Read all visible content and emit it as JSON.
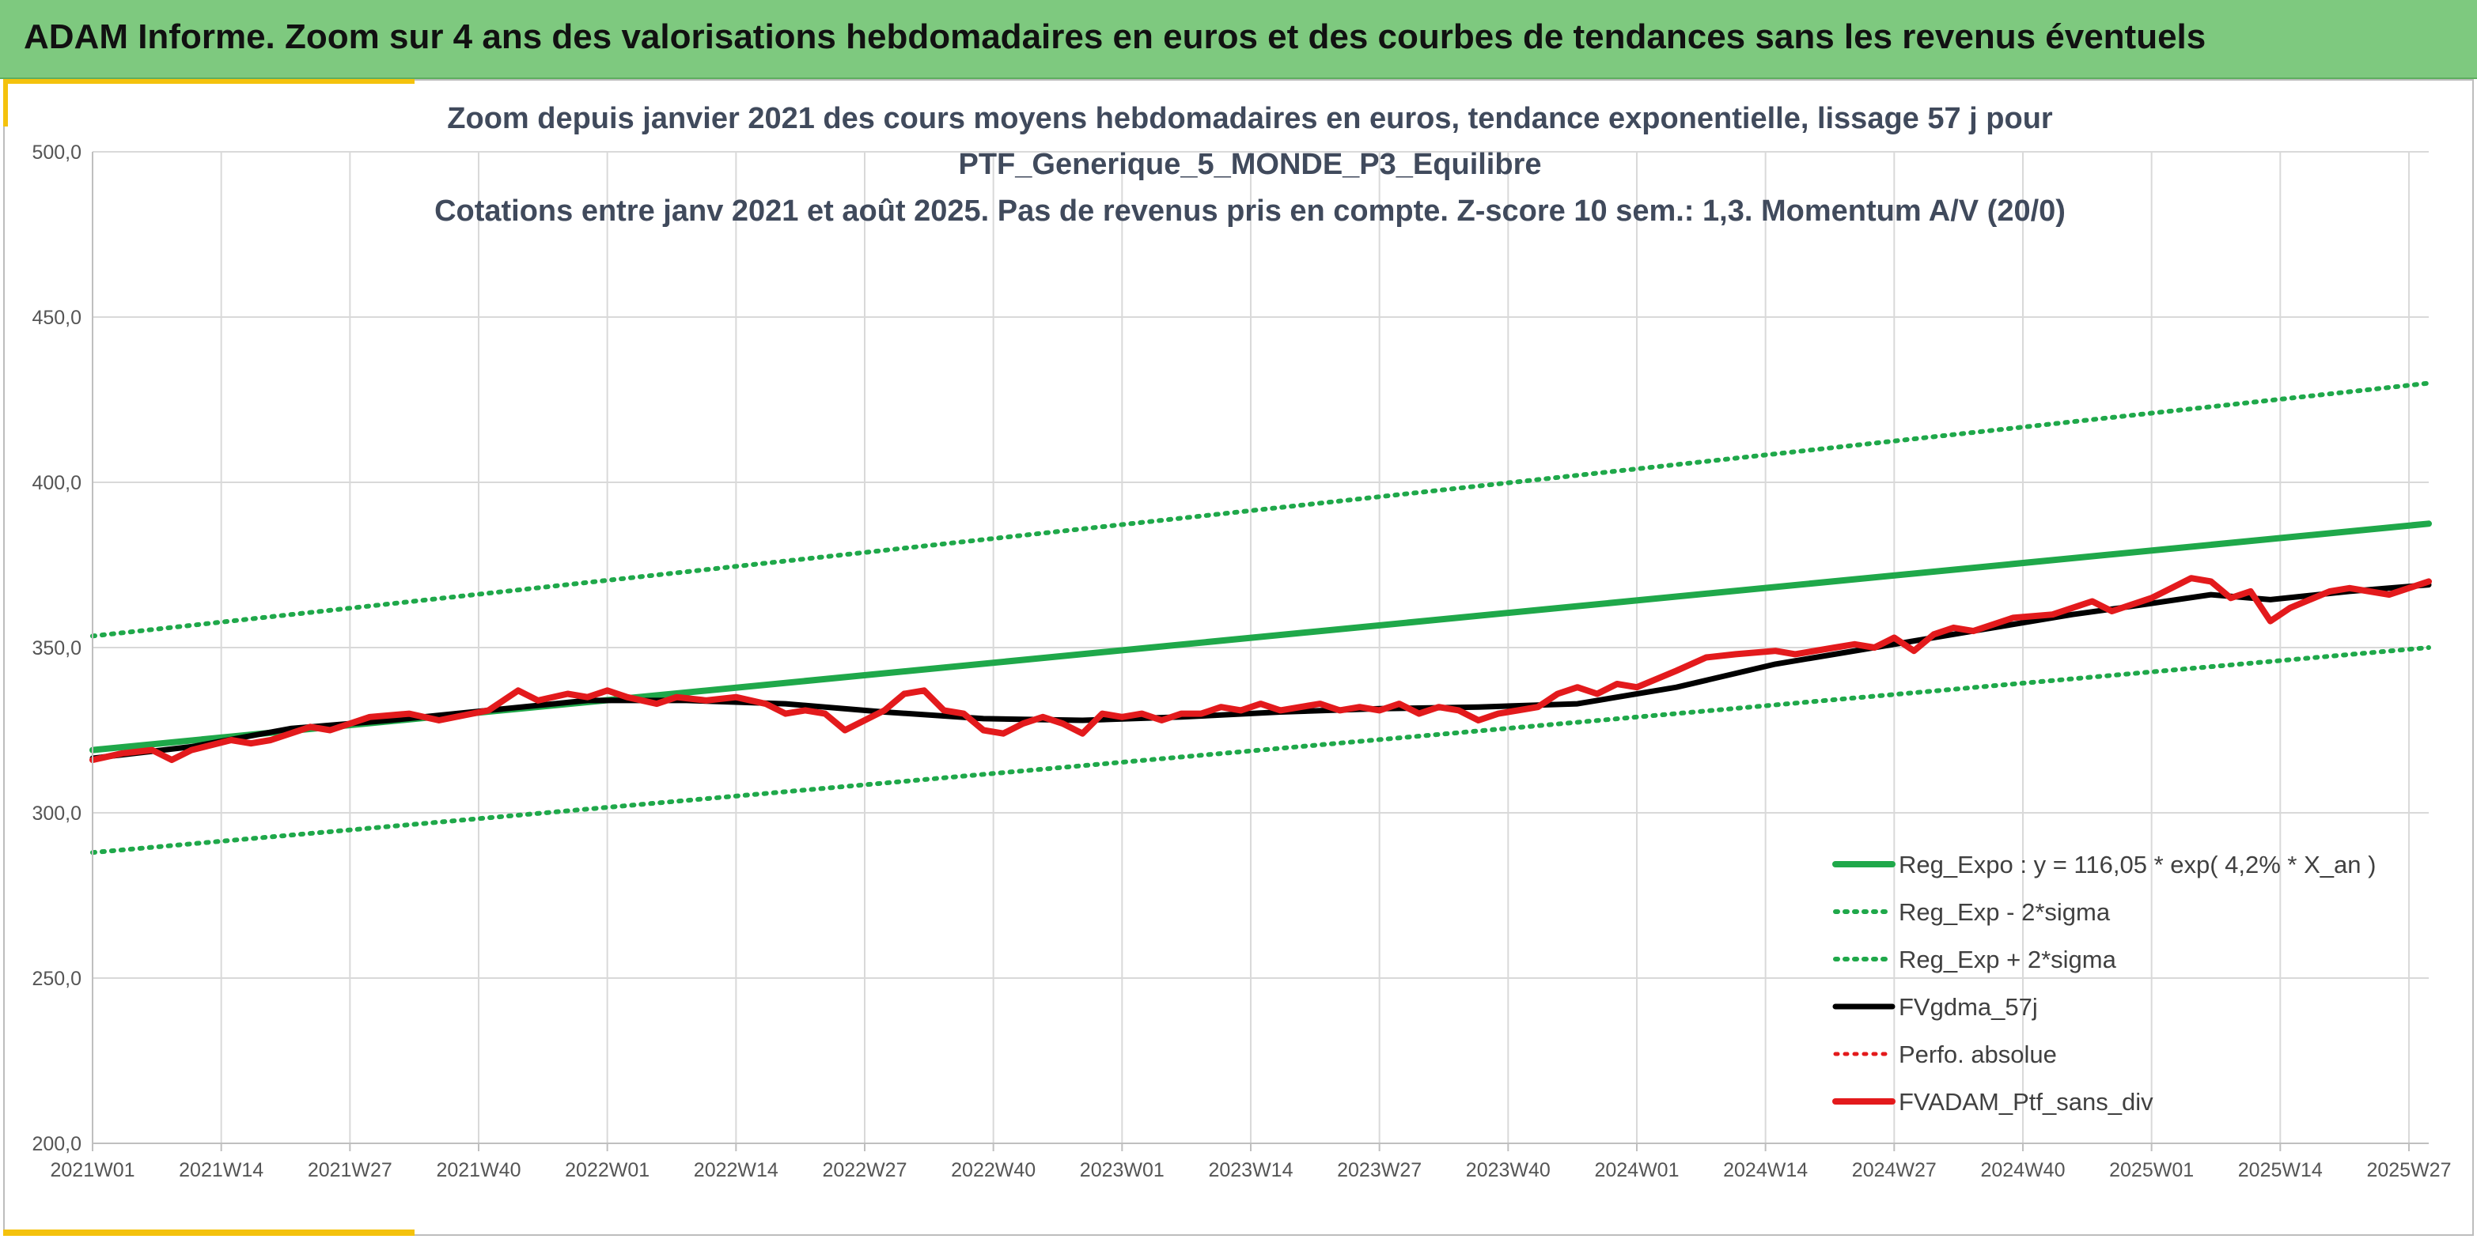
{
  "banner": {
    "title": "ADAM Informe. Zoom sur 4 ans des valorisations hebdomadaires en euros et des courbes de tendances sans les revenus éventuels",
    "background": "#7ec97f"
  },
  "chart_data": {
    "type": "line",
    "title_lines": [
      "Zoom depuis janvier 2021 des cours moyens hebdomadaires en euros, tendance exponentielle, lissage 57 j pour",
      "PTF_Generique_5_MONDE_P3_Equilibre",
      "Cotations entre janv 2021 et août 2025. Pas de revenus pris en compte. Z-score 10 sem.: 1,3. Momentum A/V (20/0)"
    ],
    "xlabel": "",
    "ylabel": "",
    "ylim": [
      200,
      500
    ],
    "y_ticks": [
      "200,0",
      "250,0",
      "300,0",
      "350,0",
      "400,0",
      "450,0",
      "500,0"
    ],
    "x_unit": "weeks since 2021W01",
    "x_range": [
      0,
      236
    ],
    "x_ticks": [
      {
        "label": "2021W01",
        "week": 0
      },
      {
        "label": "2021W14",
        "week": 13
      },
      {
        "label": "2021W27",
        "week": 26
      },
      {
        "label": "2021W40",
        "week": 39
      },
      {
        "label": "2022W01",
        "week": 52
      },
      {
        "label": "2022W14",
        "week": 65
      },
      {
        "label": "2022W27",
        "week": 78
      },
      {
        "label": "2022W40",
        "week": 91
      },
      {
        "label": "2023W01",
        "week": 104
      },
      {
        "label": "2023W14",
        "week": 117
      },
      {
        "label": "2023W27",
        "week": 130
      },
      {
        "label": "2023W40",
        "week": 143
      },
      {
        "label": "2024W01",
        "week": 156
      },
      {
        "label": "2024W14",
        "week": 169
      },
      {
        "label": "2024W27",
        "week": 182
      },
      {
        "label": "2024W40",
        "week": 195
      },
      {
        "label": "2025W01",
        "week": 208
      },
      {
        "label": "2025W14",
        "week": 221
      },
      {
        "label": "2025W27",
        "week": 234
      }
    ],
    "grid": true,
    "legend_position": "bottom-right",
    "series": [
      {
        "name": "Reg_Expo : y = 116,05 * exp( 4,2% *  X_an )",
        "color": "#1fa84a",
        "style": "solid",
        "width": 8,
        "points": [
          [
            0,
            319
          ],
          [
            236,
            387.5
          ]
        ]
      },
      {
        "name": "Reg_Exp - 2*sigma",
        "color": "#1fa84a",
        "style": "dotted",
        "width": 6,
        "points": [
          [
            0,
            288
          ],
          [
            236,
            350
          ]
        ]
      },
      {
        "name": "Reg_Exp + 2*sigma",
        "color": "#1fa84a",
        "style": "dotted",
        "width": 6,
        "points": [
          [
            0,
            353.5
          ],
          [
            236,
            430
          ]
        ]
      },
      {
        "name": "FVgdma_57j",
        "color": "#000000",
        "style": "solid",
        "width": 7,
        "points": [
          [
            0,
            316.5
          ],
          [
            10,
            320
          ],
          [
            20,
            325.5
          ],
          [
            30,
            328
          ],
          [
            40,
            331
          ],
          [
            50,
            334
          ],
          [
            60,
            334
          ],
          [
            70,
            333
          ],
          [
            80,
            330.5
          ],
          [
            90,
            328.5
          ],
          [
            100,
            328
          ],
          [
            110,
            329
          ],
          [
            120,
            330.5
          ],
          [
            130,
            331.5
          ],
          [
            140,
            332
          ],
          [
            150,
            333
          ],
          [
            160,
            338
          ],
          [
            170,
            345
          ],
          [
            180,
            350
          ],
          [
            190,
            355
          ],
          [
            200,
            360
          ],
          [
            206,
            362.5
          ],
          [
            214,
            366
          ],
          [
            220,
            364.5
          ],
          [
            228,
            367
          ],
          [
            236,
            369
          ]
        ]
      },
      {
        "name": "Perfo. absolue",
        "color": "#e31a1c",
        "style": "dotted",
        "width": 5,
        "points": []
      },
      {
        "name": "FVADAM_Ptf_sans_div",
        "color": "#e31a1c",
        "style": "solid",
        "width": 8,
        "points": [
          [
            0,
            316
          ],
          [
            3,
            318
          ],
          [
            6,
            319
          ],
          [
            8,
            316
          ],
          [
            10,
            319
          ],
          [
            14,
            322
          ],
          [
            16,
            321
          ],
          [
            18,
            322
          ],
          [
            22,
            326
          ],
          [
            24,
            325
          ],
          [
            28,
            329
          ],
          [
            32,
            330
          ],
          [
            35,
            328
          ],
          [
            40,
            331
          ],
          [
            43,
            337
          ],
          [
            45,
            334
          ],
          [
            48,
            336
          ],
          [
            50,
            335
          ],
          [
            52,
            337
          ],
          [
            54,
            335
          ],
          [
            57,
            333
          ],
          [
            59,
            335
          ],
          [
            62,
            334
          ],
          [
            65,
            335
          ],
          [
            68,
            333
          ],
          [
            70,
            330
          ],
          [
            72,
            331
          ],
          [
            74,
            330
          ],
          [
            76,
            325
          ],
          [
            80,
            331
          ],
          [
            82,
            336
          ],
          [
            84,
            337
          ],
          [
            86,
            331
          ],
          [
            88,
            330
          ],
          [
            90,
            325
          ],
          [
            92,
            324
          ],
          [
            94,
            327
          ],
          [
            96,
            329
          ],
          [
            98,
            327
          ],
          [
            100,
            324
          ],
          [
            102,
            330
          ],
          [
            104,
            329
          ],
          [
            106,
            330
          ],
          [
            108,
            328
          ],
          [
            110,
            330
          ],
          [
            112,
            330
          ],
          [
            114,
            332
          ],
          [
            116,
            331
          ],
          [
            118,
            333
          ],
          [
            120,
            331
          ],
          [
            122,
            332
          ],
          [
            124,
            333
          ],
          [
            126,
            331
          ],
          [
            128,
            332
          ],
          [
            130,
            331
          ],
          [
            132,
            333
          ],
          [
            134,
            330
          ],
          [
            136,
            332
          ],
          [
            138,
            331
          ],
          [
            140,
            328
          ],
          [
            142,
            330
          ],
          [
            144,
            331
          ],
          [
            146,
            332
          ],
          [
            148,
            336
          ],
          [
            150,
            338
          ],
          [
            152,
            336
          ],
          [
            154,
            339
          ],
          [
            156,
            338
          ],
          [
            160,
            343
          ],
          [
            163,
            347
          ],
          [
            166,
            348
          ],
          [
            170,
            349
          ],
          [
            172,
            348
          ],
          [
            176,
            350
          ],
          [
            178,
            351
          ],
          [
            180,
            350
          ],
          [
            182,
            353
          ],
          [
            184,
            349
          ],
          [
            186,
            354
          ],
          [
            188,
            356
          ],
          [
            190,
            355
          ],
          [
            194,
            359
          ],
          [
            198,
            360
          ],
          [
            202,
            364
          ],
          [
            204,
            361
          ],
          [
            208,
            365
          ],
          [
            210,
            368
          ],
          [
            212,
            371
          ],
          [
            214,
            370
          ],
          [
            216,
            365
          ],
          [
            218,
            367
          ],
          [
            220,
            358
          ],
          [
            222,
            362
          ],
          [
            226,
            367
          ],
          [
            228,
            368
          ],
          [
            232,
            366
          ],
          [
            236,
            370
          ]
        ]
      }
    ]
  }
}
